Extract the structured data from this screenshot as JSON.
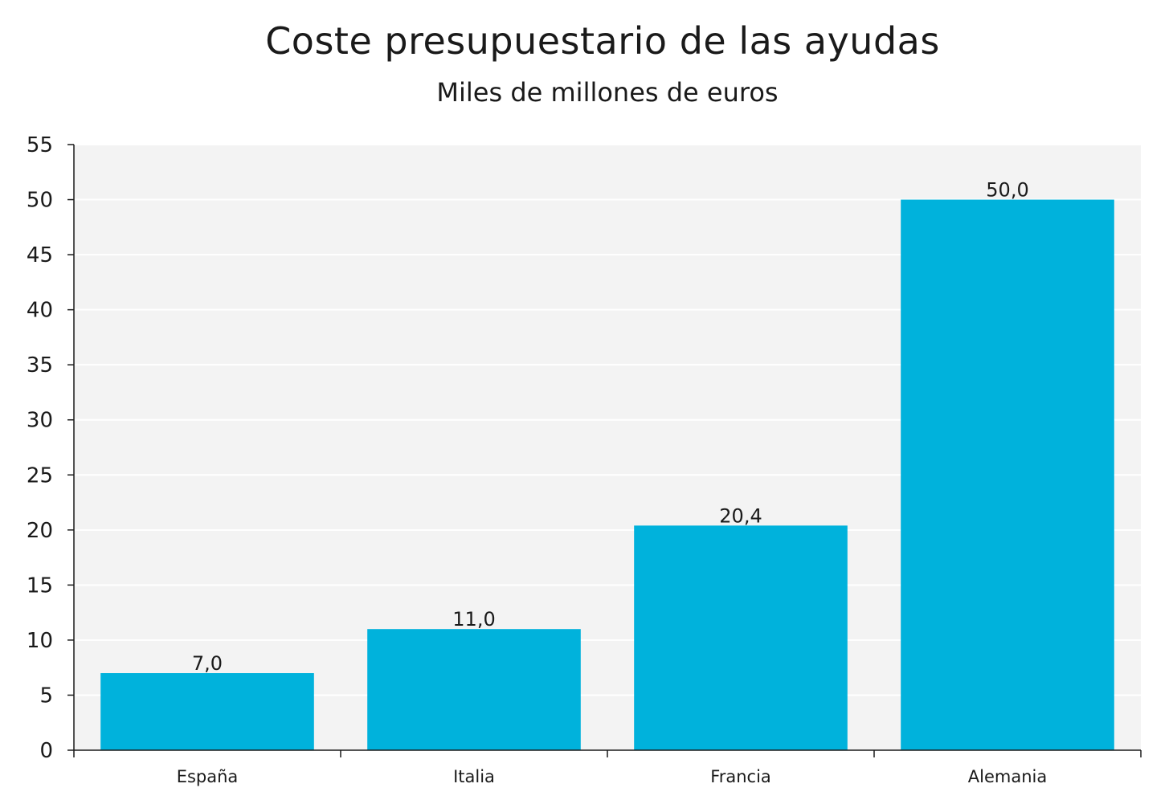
{
  "chart_data": {
    "type": "bar",
    "title": "Coste presupuestario de las ayudas",
    "subtitle": "Miles de millones de euros",
    "categories": [
      "España",
      "Italia",
      "Francia",
      "Alemania"
    ],
    "values": [
      7.0,
      11.0,
      20.4,
      50.0
    ],
    "value_labels": [
      "7,0",
      "11,0",
      "20,4",
      "50,0"
    ],
    "ylim": [
      0,
      55
    ],
    "yticks": [
      0,
      5,
      10,
      15,
      20,
      25,
      30,
      35,
      40,
      45,
      50,
      55
    ],
    "xlabel": "",
    "ylabel": "",
    "grid": true,
    "legend": "none",
    "colors": {
      "bar": "#00b2dc",
      "plot_background": "#f3f3f3",
      "gridline": "#ffffff",
      "axis": "#1a1a1a"
    }
  }
}
